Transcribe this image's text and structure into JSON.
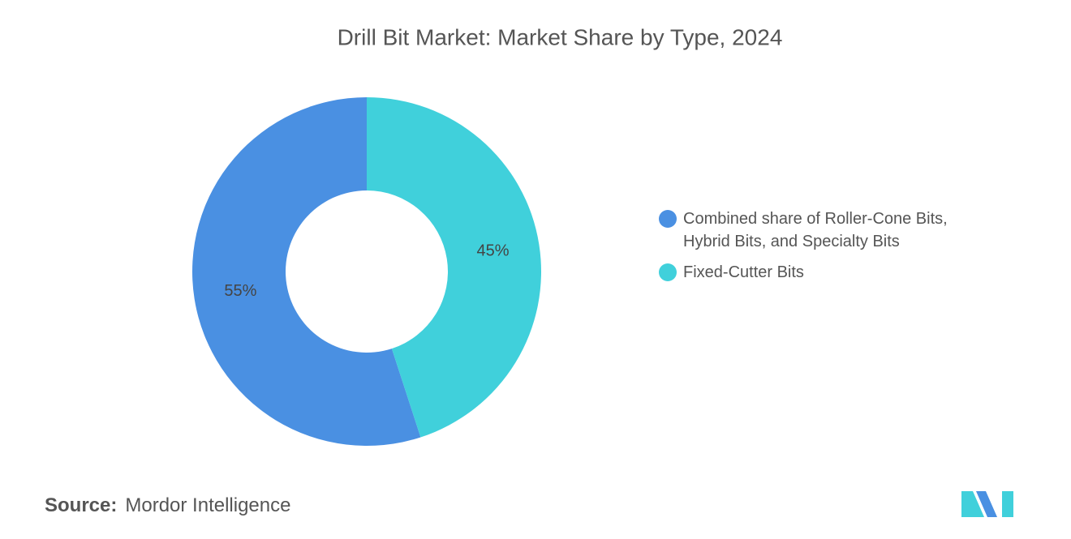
{
  "chart_data": {
    "type": "donut",
    "title": "Drill Bit Market: Market Share by Type, 2024",
    "categories": [
      "Combined share of Roller-Cone Bits, Hybrid Bits, and Specialty Bits",
      "Fixed-Cutter Bits"
    ],
    "values": [
      55,
      45
    ],
    "value_labels": [
      "55%",
      "45%"
    ],
    "colors": [
      "#4a90e2",
      "#40d0db"
    ],
    "legend": "right",
    "source_label": "Source:",
    "source": "Mordor Intelligence"
  }
}
